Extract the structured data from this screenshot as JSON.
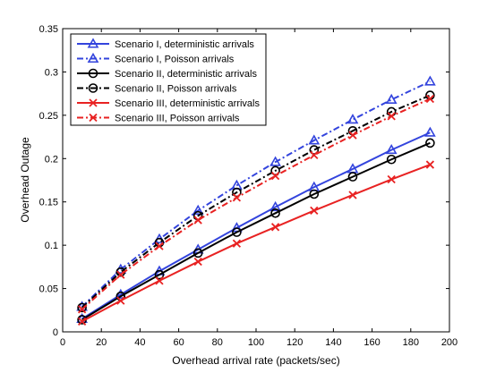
{
  "chart_data": {
    "type": "line",
    "xlabel": "Overhead arrival rate (packets/sec)",
    "ylabel": "Overhead Outage",
    "xlim": [
      0,
      200
    ],
    "ylim": [
      0,
      0.35
    ],
    "xticks": [
      0,
      20,
      40,
      60,
      80,
      100,
      120,
      140,
      160,
      180,
      200
    ],
    "yticks": [
      0,
      0.05,
      0.1,
      0.15,
      0.2,
      0.25,
      0.3,
      0.35
    ],
    "xtick_labels": [
      "0",
      "20",
      "40",
      "60",
      "80",
      "100",
      "120",
      "140",
      "160",
      "180",
      "200"
    ],
    "ytick_labels": [
      "0",
      "0.05",
      "0.1",
      "0.15",
      "0.2",
      "0.25",
      "0.3",
      "0.35"
    ],
    "grid": false,
    "legend_position": "top-left",
    "x": [
      10,
      30,
      50,
      70,
      90,
      110,
      130,
      150,
      170,
      190
    ],
    "series": [
      {
        "name": "Scenario I, deterministic arrivals",
        "color": "#3344dd",
        "marker": "triangle",
        "dash": "solid",
        "values": [
          0.015,
          0.043,
          0.07,
          0.095,
          0.12,
          0.144,
          0.167,
          0.188,
          0.21,
          0.23
        ]
      },
      {
        "name": "Scenario I, Poisson arrivals",
        "color": "#3344dd",
        "marker": "triangle",
        "dash": "dashdot",
        "values": [
          0.029,
          0.072,
          0.107,
          0.14,
          0.169,
          0.196,
          0.221,
          0.245,
          0.268,
          0.289
        ]
      },
      {
        "name": "Scenario II, deterministic arrivals",
        "color": "#000000",
        "marker": "circle",
        "dash": "solid",
        "values": [
          0.014,
          0.041,
          0.066,
          0.091,
          0.115,
          0.137,
          0.159,
          0.179,
          0.199,
          0.218
        ]
      },
      {
        "name": "Scenario II, Poisson arrivals",
        "color": "#000000",
        "marker": "circle",
        "dash": "dashdot",
        "values": [
          0.028,
          0.069,
          0.103,
          0.134,
          0.161,
          0.186,
          0.21,
          0.232,
          0.254,
          0.273
        ]
      },
      {
        "name": "Scenario III, deterministic arrivals",
        "color": "#e82222",
        "marker": "x",
        "dash": "solid",
        "values": [
          0.012,
          0.036,
          0.059,
          0.081,
          0.102,
          0.121,
          0.14,
          0.158,
          0.176,
          0.193
        ]
      },
      {
        "name": "Scenario III, Poisson arrivals",
        "color": "#e82222",
        "marker": "x",
        "dash": "dashdot",
        "values": [
          0.026,
          0.066,
          0.099,
          0.129,
          0.155,
          0.18,
          0.204,
          0.227,
          0.249,
          0.269
        ]
      }
    ]
  }
}
